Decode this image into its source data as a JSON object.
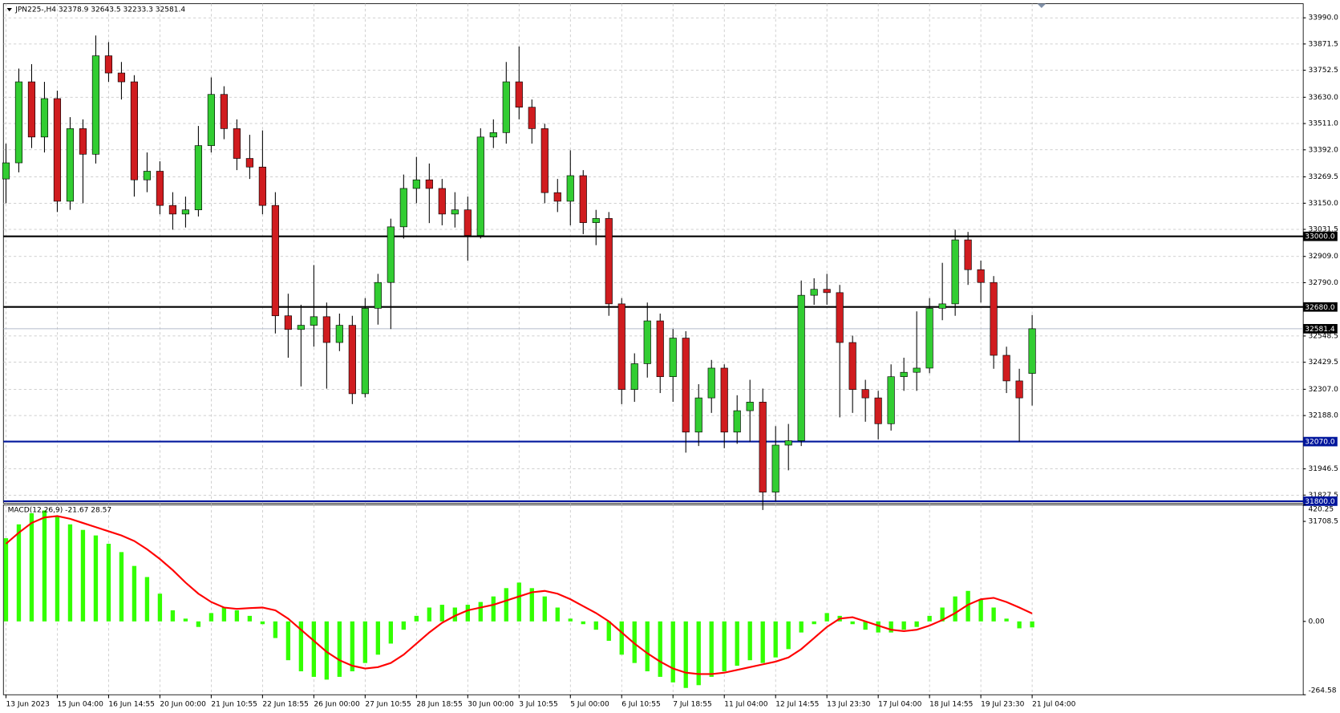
{
  "chart_data": [
    {
      "type": "candlestick",
      "title": "JPN225-,H4  32378.9 32643.5 32233.3 32581.4",
      "x_labels": [
        "13 Jun 2023",
        "15 Jun 04:00",
        "16 Jun 14:55",
        "20 Jun 00:00",
        "21 Jun 10:55",
        "22 Jun 18:55",
        "26 Jun 00:00",
        "27 Jun 10:55",
        "28 Jun 18:55",
        "30 Jun 00:00",
        "3 Jul 10:55",
        "5 Jul 00:00",
        "6 Jul 10:55",
        "7 Jul 18:55",
        "11 Jul 04:00",
        "12 Jul 14:55",
        "13 Jul 23:30",
        "17 Jul 04:00",
        "18 Jul 14:55",
        "19 Jul 23:30",
        "21 Jul 04:00"
      ],
      "open": [
        33260,
        33333,
        33700,
        33450,
        33624,
        33159,
        33488,
        33372,
        33818,
        33740,
        33700,
        33256,
        33295,
        33140,
        33101,
        33120,
        33411,
        33643,
        33488,
        33353,
        33314,
        33140,
        32640,
        32578,
        32597,
        32636,
        32519,
        32597,
        32287,
        32674,
        32791,
        33043,
        33217,
        33256,
        33217,
        33101,
        33120,
        33004,
        33450,
        33470,
        33700,
        33585,
        33488,
        33198,
        33159,
        33275,
        33062,
        33081,
        32694,
        32306,
        32423,
        32617,
        32364,
        32539,
        32113,
        32268,
        32403,
        32113,
        32210,
        32249,
        31841,
        32054,
        32074,
        32733,
        32760,
        32745,
        32519,
        32306,
        32268,
        32151,
        32364,
        32384,
        32403,
        32674,
        32694,
        32984,
        32849,
        32791,
        32461,
        32345,
        32378.9
      ],
      "high": [
        33420,
        33760,
        33780,
        33700,
        33660,
        33540,
        33530,
        33910,
        33880,
        33790,
        33730,
        33380,
        33340,
        33200,
        33180,
        33500,
        33720,
        33680,
        33530,
        33460,
        33480,
        33200,
        32740,
        32690,
        32870,
        32700,
        32650,
        32640,
        32720,
        32830,
        33080,
        33280,
        33360,
        33330,
        33260,
        33200,
        33180,
        33490,
        33530,
        33790,
        33860,
        33620,
        33510,
        33260,
        33390,
        33300,
        33120,
        33110,
        32720,
        32470,
        32700,
        32650,
        32580,
        32570,
        32330,
        32440,
        32420,
        32280,
        32350,
        32310,
        32140,
        32150,
        32800,
        32810,
        32830,
        32780,
        32550,
        32350,
        32300,
        32420,
        32450,
        32660,
        32720,
        32880,
        33030,
        33020,
        32890,
        32820,
        32500,
        32400,
        32643.5
      ],
      "low": [
        33150,
        33290,
        33400,
        33380,
        33110,
        33120,
        33150,
        33330,
        33700,
        33620,
        33180,
        33200,
        33100,
        33030,
        33040,
        33090,
        33380,
        33440,
        33300,
        33260,
        33100,
        32560,
        32450,
        32320,
        32500,
        32310,
        32480,
        32240,
        32270,
        32600,
        32580,
        32990,
        33150,
        33060,
        33050,
        33040,
        32890,
        32990,
        33400,
        33420,
        33530,
        33420,
        33150,
        33110,
        33050,
        33010,
        32960,
        32640,
        32240,
        32250,
        32360,
        32290,
        32250,
        32020,
        32050,
        32200,
        32040,
        32060,
        32070,
        31760,
        31800,
        31940,
        32050,
        32690,
        32690,
        32180,
        32200,
        32160,
        32080,
        32120,
        32300,
        32300,
        32380,
        32620,
        32640,
        32780,
        32700,
        32400,
        32290,
        32070,
        32233.3
      ],
      "close": [
        33333,
        33700,
        33450,
        33624,
        33159,
        33488,
        33372,
        33818,
        33740,
        33700,
        33256,
        33295,
        33140,
        33101,
        33120,
        33411,
        33643,
        33488,
        33353,
        33314,
        33140,
        32640,
        32578,
        32597,
        32636,
        32519,
        32597,
        32287,
        32674,
        32791,
        33043,
        33217,
        33256,
        33217,
        33101,
        33120,
        33004,
        33450,
        33470,
        33700,
        33585,
        33488,
        33198,
        33159,
        33275,
        33062,
        33081,
        32694,
        32306,
        32423,
        32617,
        32364,
        32539,
        32113,
        32268,
        32403,
        32113,
        32210,
        32249,
        31841,
        32054,
        32074,
        32733,
        32760,
        32745,
        32519,
        32306,
        32268,
        32151,
        32364,
        32384,
        32403,
        32674,
        32694,
        32984,
        32849,
        32791,
        32461,
        32345,
        32268,
        32581.4
      ],
      "up_color": "#32cd32",
      "down_color": "#d01c1f",
      "ylim": [
        31791,
        34054
      ],
      "yticks": [
        {
          "value": 33990,
          "label": "33990.0"
        },
        {
          "value": 33871.5,
          "label": "33871.5"
        },
        {
          "value": 33752.5,
          "label": "33752.5"
        },
        {
          "value": 33630,
          "label": "33630.0"
        },
        {
          "value": 33511,
          "label": "33511.0"
        },
        {
          "value": 33392,
          "label": "33392.0"
        },
        {
          "value": 33269.5,
          "label": "33269.5"
        },
        {
          "value": 33150,
          "label": "33150.0"
        },
        {
          "value": 33031.5,
          "label": "33031.5"
        },
        {
          "value": 32909,
          "label": "32909.0"
        },
        {
          "value": 32790,
          "label": "32790.0"
        },
        {
          "value": 32548.5,
          "label": "32548.5"
        },
        {
          "value": 32429.5,
          "label": "32429.5"
        },
        {
          "value": 32307,
          "label": "32307.0"
        },
        {
          "value": 32188,
          "label": "32188.0"
        },
        {
          "value": 31946.5,
          "label": "31946.5"
        },
        {
          "value": 31827.5,
          "label": "31827.5"
        },
        {
          "value": 31708.5,
          "label": "31708.5"
        }
      ],
      "levels": [
        {
          "value": 33000,
          "label": "33000.0",
          "color": "#000000",
          "label_color": "#000000",
          "line_width": 2
        },
        {
          "value": 32680,
          "label": "32680.0",
          "color": "#000000",
          "label_color": "#000000",
          "line_width": 2
        },
        {
          "value": 32581.4,
          "label": "32581.4",
          "color": "#b4bccb",
          "label_color": "#000000",
          "line_width": 1
        },
        {
          "value": 32070,
          "label": "32070.0",
          "color": "#00169c",
          "label_color": "#00169c",
          "line_width": 2
        },
        {
          "value": 31800,
          "label": "31800.0",
          "color": "#00169c",
          "label_color": "#00169c",
          "line_width": 2
        }
      ],
      "grid": true
    },
    {
      "type": "macd",
      "title": "MACD(12,26,9) -21.67 28.57",
      "histogram": [
        300,
        350,
        390,
        400,
        380,
        350,
        330,
        310,
        280,
        250,
        200,
        160,
        100,
        40,
        10,
        -20,
        30,
        50,
        40,
        20,
        -10,
        -60,
        -140,
        -180,
        -200,
        -210,
        -200,
        -180,
        -150,
        -120,
        -80,
        -30,
        20,
        50,
        60,
        50,
        60,
        70,
        90,
        120,
        140,
        120,
        90,
        50,
        10,
        -10,
        -30,
        -70,
        -120,
        -150,
        -180,
        -200,
        -220,
        -240,
        -230,
        -200,
        -180,
        -160,
        -140,
        -150,
        -130,
        -100,
        -40,
        -10,
        30,
        20,
        -10,
        -30,
        -40,
        -40,
        -30,
        -20,
        20,
        50,
        90,
        110,
        80,
        50,
        10,
        -25,
        -21.67
      ],
      "signal": [
        280,
        320,
        355,
        375,
        380,
        370,
        355,
        340,
        325,
        310,
        290,
        260,
        225,
        185,
        140,
        100,
        70,
        50,
        45,
        48,
        50,
        40,
        10,
        -30,
        -70,
        -110,
        -140,
        -160,
        -170,
        -165,
        -150,
        -120,
        -80,
        -40,
        -5,
        20,
        40,
        50,
        60,
        75,
        90,
        105,
        110,
        100,
        80,
        55,
        30,
        0,
        -40,
        -80,
        -115,
        -145,
        -170,
        -185,
        -190,
        -190,
        -185,
        -175,
        -165,
        -155,
        -145,
        -130,
        -100,
        -60,
        -20,
        10,
        15,
        0,
        -15,
        -30,
        -35,
        -30,
        -15,
        5,
        30,
        60,
        80,
        85,
        70,
        50,
        28.57
      ],
      "histogram_color": "#33ff00",
      "signal_color": "#ff0000",
      "ylim": [
        -264.58,
        420.25
      ],
      "yticks": [
        {
          "value": 420.25,
          "label": "420.25"
        },
        {
          "value": 0,
          "label": "0.00"
        },
        {
          "value": -264.58,
          "label": "-264.58"
        }
      ],
      "grid": true
    }
  ]
}
